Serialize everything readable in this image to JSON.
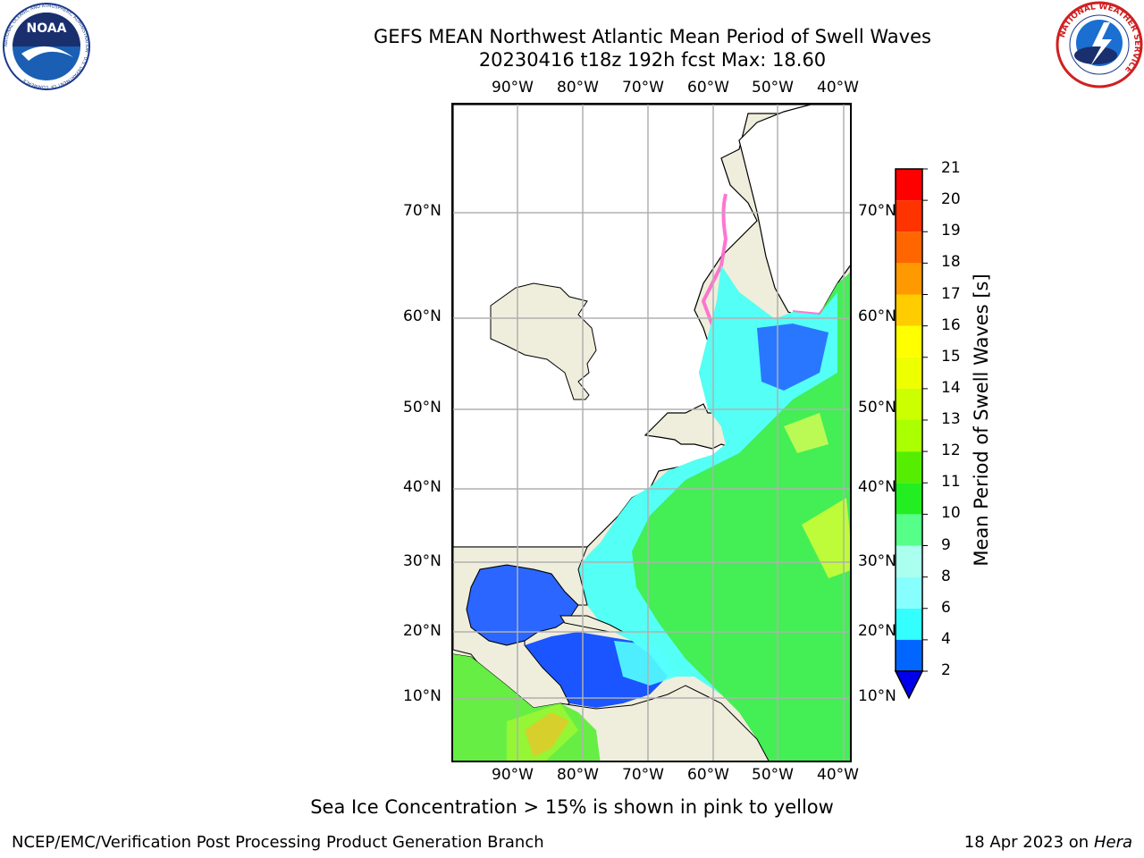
{
  "header": {
    "title_line1": "GEFS MEAN Northwest Atlantic Mean Period of Swell Waves",
    "title_line2": "20230416 t18z 192h fcst   Max: 18.60"
  },
  "logos": {
    "noaa_text": "NOAA",
    "noaa_ring_text": "NATIONAL OCEANIC AND ATMOSPHERIC ADMINISTRATION · U.S. DEPARTMENT OF COMMERCE",
    "nws_ring_text": "NATIONAL WEATHER SERVICE"
  },
  "map": {
    "lon_labels": [
      "90°W",
      "80°W",
      "70°W",
      "60°W",
      "50°W",
      "40°W"
    ],
    "lat_labels": [
      "70°N",
      "60°N",
      "50°N",
      "40°N",
      "30°N",
      "20°N",
      "10°N"
    ],
    "colors": {
      "land": "#efeddc",
      "ice_land": "#ffffff",
      "grid": "#b0b0b0"
    }
  },
  "colorbar": {
    "label": "Mean Period of Swell Waves [s]",
    "tick_labels": [
      "2",
      "4",
      "6",
      "8",
      "9",
      "10",
      "11",
      "12",
      "13",
      "14",
      "15",
      "16",
      "17",
      "18",
      "19",
      "20",
      "21"
    ],
    "colors": [
      "#0066ff",
      "#00ccff",
      "#33ffff",
      "#88ffff",
      "#aaffee",
      "#55ff88",
      "#22ee22",
      "#55ee00",
      "#aaff00",
      "#ccff00",
      "#eeff00",
      "#ffff00",
      "#ffcc00",
      "#ff9900",
      "#ff6600",
      "#ff3300",
      "#ff0000"
    ],
    "under_color": "#0000ee"
  },
  "note": "Sea Ice Concentration > 15% is shown in pink to yellow",
  "footer": {
    "left": "NCEP/EMC/Verification Post Processing Product Generation Branch",
    "right_date": "18 Apr 2023 on ",
    "right_host": "Hera"
  }
}
